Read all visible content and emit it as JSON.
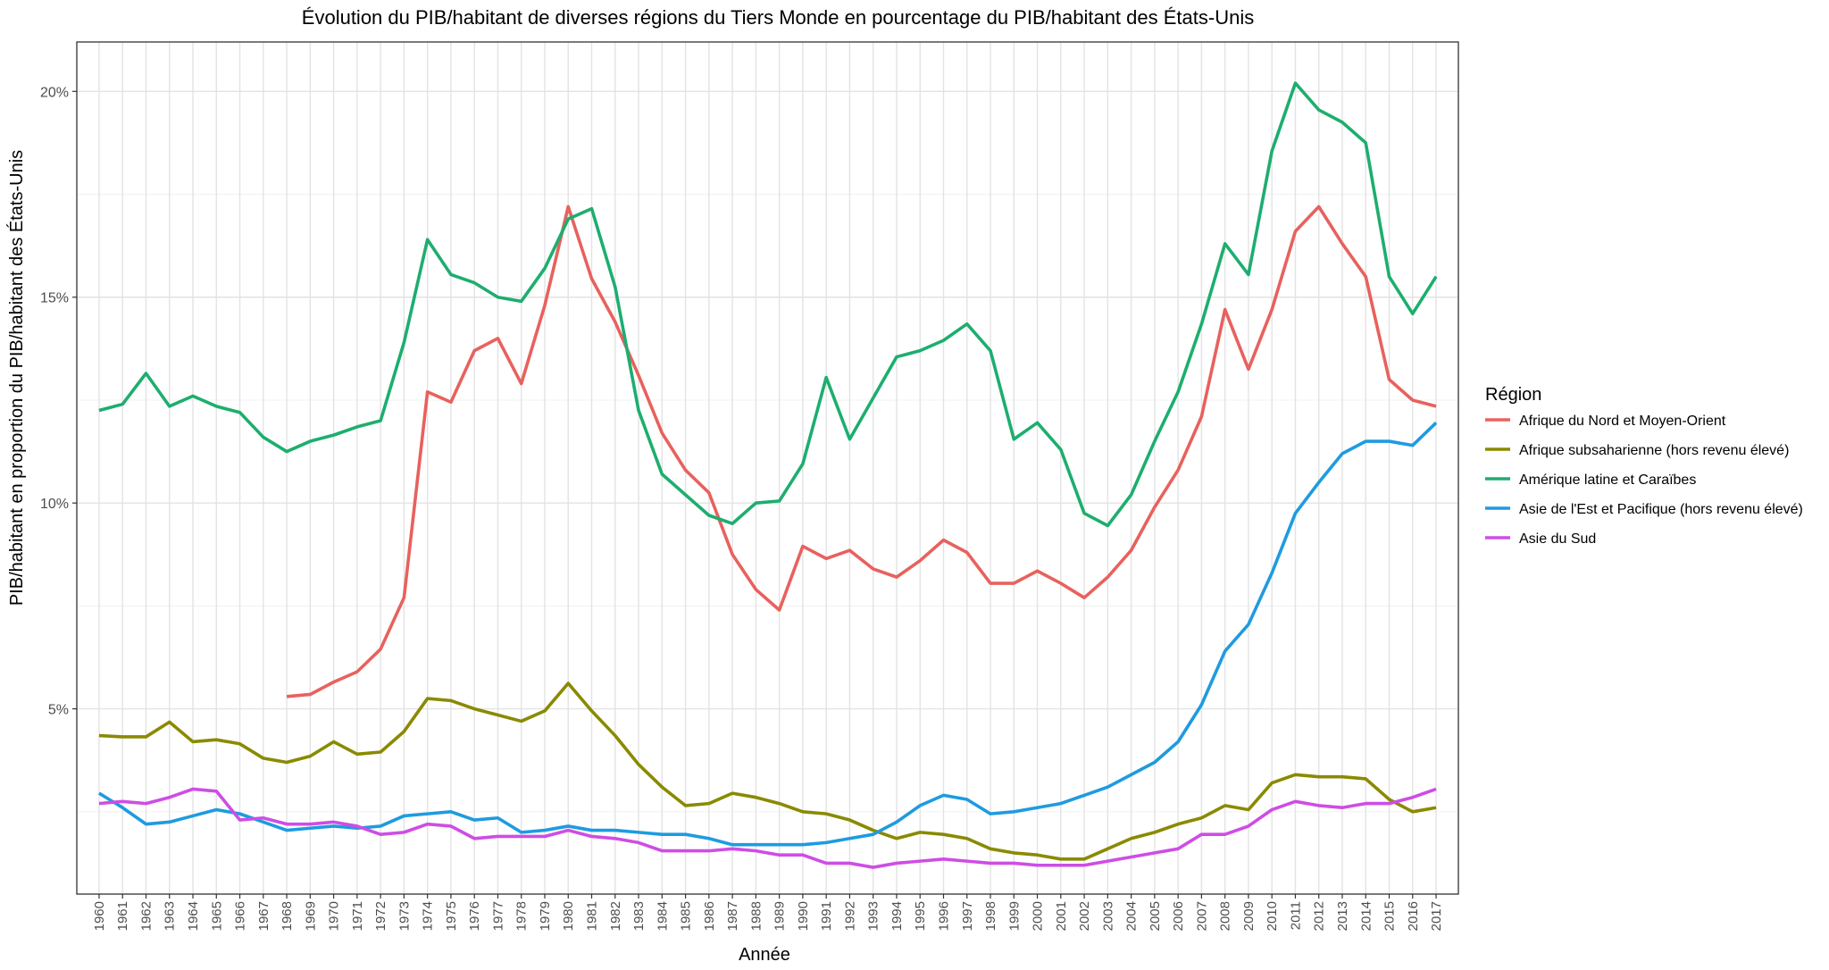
{
  "chart_data": {
    "type": "line",
    "title": "Évolution du PIB/habitant de diverses régions du Tiers Monde en pourcentage du PIB/habitant des États-Unis",
    "xlabel": "Année",
    "ylabel": "PIB/habitant en proportion du PIB/habitant des États-Unis",
    "legend_title": "Région",
    "legend_position": "right",
    "grid": true,
    "xlim": [
      1960,
      2017
    ],
    "ylim": [
      0.5,
      21.2
    ],
    "y_ticks": [
      5,
      10,
      15,
      20
    ],
    "y_tick_labels": [
      "5%",
      "10%",
      "15%",
      "20%"
    ],
    "x": [
      1960,
      1961,
      1962,
      1963,
      1964,
      1965,
      1966,
      1967,
      1968,
      1969,
      1970,
      1971,
      1972,
      1973,
      1974,
      1975,
      1976,
      1977,
      1978,
      1979,
      1980,
      1981,
      1982,
      1983,
      1984,
      1985,
      1986,
      1987,
      1988,
      1989,
      1990,
      1991,
      1992,
      1993,
      1994,
      1995,
      1996,
      1997,
      1998,
      1999,
      2000,
      2001,
      2002,
      2003,
      2004,
      2005,
      2006,
      2007,
      2008,
      2009,
      2010,
      2011,
      2012,
      2013,
      2014,
      2015,
      2016,
      2017
    ],
    "x_tick_labels": [
      "1960",
      "1961",
      "1962",
      "1963",
      "1964",
      "1965",
      "1966",
      "1967",
      "1968",
      "1969",
      "1970",
      "1971",
      "1972",
      "1973",
      "1974",
      "1975",
      "1976",
      "1977",
      "1978",
      "1979",
      "1980",
      "1981",
      "1982",
      "1983",
      "1984",
      "1985",
      "1986",
      "1987",
      "1988",
      "1989",
      "1990",
      "1991",
      "1992",
      "1993",
      "1994",
      "1995",
      "1996",
      "1997",
      "1998",
      "1999",
      "2000",
      "2001",
      "2002",
      "2003",
      "2004",
      "2005",
      "2006",
      "2007",
      "2008",
      "2009",
      "2010",
      "2011",
      "2012",
      "2013",
      "2014",
      "2015",
      "2016",
      "2017"
    ],
    "series": [
      {
        "name": "Afrique du Nord et Moyen-Orient",
        "color": "#E8615D",
        "values": [
          null,
          null,
          null,
          null,
          null,
          null,
          null,
          null,
          5.3,
          5.35,
          5.65,
          5.9,
          6.45,
          7.7,
          12.7,
          12.45,
          13.7,
          14.0,
          12.9,
          14.8,
          17.2,
          15.45,
          14.4,
          13.1,
          11.7,
          10.8,
          10.25,
          8.75,
          7.9,
          7.4,
          8.95,
          8.65,
          8.85,
          8.4,
          8.2,
          8.6,
          9.1,
          8.8,
          8.05,
          8.05,
          8.35,
          8.05,
          7.7,
          8.2,
          8.85,
          9.9,
          10.8,
          12.1,
          14.7,
          13.25,
          14.7,
          16.6,
          17.2,
          16.3,
          15.5,
          13.0,
          12.5,
          12.35
        ]
      },
      {
        "name": "Afrique subsaharienne (hors revenu élevé)",
        "color": "#8A8A00",
        "values": [
          4.35,
          4.32,
          4.32,
          4.68,
          4.2,
          4.25,
          4.15,
          3.8,
          3.7,
          3.85,
          4.2,
          3.9,
          3.95,
          4.45,
          5.25,
          5.2,
          5.0,
          4.85,
          4.7,
          4.95,
          5.62,
          4.95,
          4.35,
          3.65,
          3.1,
          2.65,
          2.7,
          2.95,
          2.85,
          2.7,
          2.5,
          2.45,
          2.3,
          2.05,
          1.85,
          2.0,
          1.95,
          1.85,
          1.6,
          1.5,
          1.45,
          1.35,
          1.35,
          1.6,
          1.85,
          2.0,
          2.2,
          2.35,
          2.65,
          2.55,
          3.2,
          3.4,
          3.35,
          3.35,
          3.3,
          2.8,
          2.5,
          2.6
        ]
      },
      {
        "name": "Amérique latine et Caraïbes",
        "color": "#1DAE6F",
        "values": [
          12.25,
          12.4,
          13.15,
          12.35,
          12.6,
          12.35,
          12.2,
          11.6,
          11.25,
          11.5,
          11.65,
          11.85,
          12.0,
          13.9,
          16.4,
          15.55,
          15.35,
          15.0,
          14.9,
          15.7,
          16.9,
          17.15,
          15.25,
          12.25,
          10.7,
          10.2,
          9.7,
          9.5,
          10.0,
          10.05,
          10.95,
          13.05,
          11.55,
          12.55,
          13.55,
          13.7,
          13.95,
          14.35,
          13.7,
          11.55,
          11.95,
          11.3,
          9.75,
          9.45,
          10.2,
          11.5,
          12.7,
          14.35,
          16.3,
          15.55,
          18.55,
          20.2,
          19.55,
          19.25,
          18.75,
          15.5,
          14.6,
          15.5
        ]
      },
      {
        "name": "Asie de l'Est et Pacifique (hors revenu élevé)",
        "color": "#1E9BE0",
        "values": [
          2.95,
          2.6,
          2.2,
          2.25,
          2.4,
          2.55,
          2.45,
          2.25,
          2.05,
          2.1,
          2.15,
          2.1,
          2.15,
          2.4,
          2.45,
          2.5,
          2.3,
          2.35,
          2.0,
          2.05,
          2.15,
          2.05,
          2.05,
          2.0,
          1.95,
          1.95,
          1.85,
          1.7,
          1.7,
          1.7,
          1.7,
          1.75,
          1.85,
          1.95,
          2.25,
          2.65,
          2.9,
          2.8,
          2.45,
          2.5,
          2.6,
          2.7,
          2.9,
          3.1,
          3.4,
          3.7,
          4.2,
          5.1,
          6.4,
          7.05,
          8.3,
          9.75,
          10.5,
          11.2,
          11.5,
          11.5,
          11.4,
          11.95
        ]
      },
      {
        "name": "Asie du Sud",
        "color": "#CE4DE5",
        "values": [
          2.7,
          2.75,
          2.7,
          2.85,
          3.05,
          3.0,
          2.3,
          2.35,
          2.2,
          2.2,
          2.25,
          2.15,
          1.95,
          2.0,
          2.2,
          2.15,
          1.85,
          1.9,
          1.9,
          1.9,
          2.05,
          1.9,
          1.85,
          1.75,
          1.55,
          1.55,
          1.55,
          1.6,
          1.55,
          1.45,
          1.45,
          1.25,
          1.25,
          1.15,
          1.25,
          1.3,
          1.35,
          1.3,
          1.25,
          1.25,
          1.2,
          1.2,
          1.2,
          1.3,
          1.4,
          1.5,
          1.6,
          1.95,
          1.95,
          2.15,
          2.55,
          2.75,
          2.65,
          2.6,
          2.7,
          2.7,
          2.85,
          3.05
        ]
      }
    ]
  }
}
